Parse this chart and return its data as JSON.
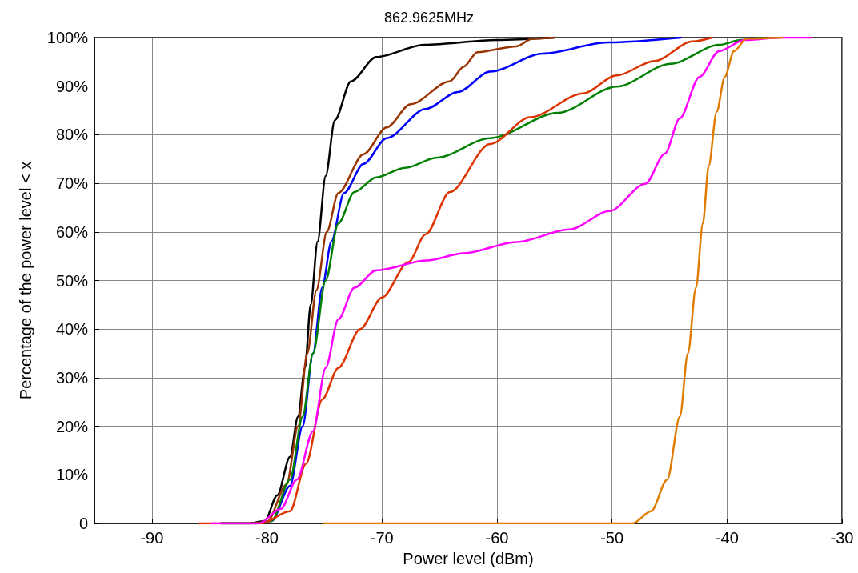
{
  "chart_data": {
    "type": "line",
    "title": "862.9625MHz",
    "xlabel": "Power level (dBm)",
    "ylabel": "Percentage of the power level < x",
    "xlim": [
      -95,
      -30
    ],
    "xticks": [
      -90,
      -80,
      -70,
      -60,
      -50,
      -40,
      -30
    ],
    "ylim": [
      0,
      100
    ],
    "yticks": [
      0,
      {
        "value": 10,
        "label": "10%"
      },
      {
        "value": 20,
        "label": "20%"
      },
      {
        "value": 30,
        "label": "30%"
      },
      {
        "value": 40,
        "label": "40%"
      },
      {
        "value": 50,
        "label": "50%"
      },
      {
        "value": 60,
        "label": "60%"
      },
      {
        "value": 70,
        "label": "70%"
      },
      {
        "value": 80,
        "label": "80%"
      },
      {
        "value": 90,
        "label": "90%"
      },
      {
        "value": 100,
        "label": "100%"
      }
    ],
    "grid": true,
    "marker": "none",
    "line_style": "solid",
    "series": [
      {
        "color": "#000000",
        "x": [
          -84,
          -81.6,
          -80.2,
          -79.1,
          -78.0,
          -77.3,
          -76.7,
          -76.2,
          -75.6,
          -74.9,
          -74.1,
          -72.7,
          -70.5,
          -66.3,
          -60,
          -55
        ],
        "values": [
          0,
          0,
          0.5,
          5.8,
          13.7,
          22,
          32,
          45,
          58,
          71.5,
          83,
          91,
          96,
          98.5,
          99.5,
          100
        ]
      },
      {
        "color": "#0000ff",
        "x": [
          -84,
          -81,
          -79.6,
          -78,
          -76.9,
          -76,
          -75.2,
          -74.4,
          -73.3,
          -71.6,
          -69.6,
          -66.2,
          -63.4,
          -60.6,
          -56,
          -50.4,
          -44
        ],
        "values": [
          0,
          0,
          0.5,
          7.7,
          20,
          35,
          48.5,
          58,
          68,
          74,
          79.3,
          85.3,
          88.8,
          93,
          96.7,
          99,
          100
        ]
      },
      {
        "color": "#993300",
        "x": [
          -84,
          -81.5,
          -80,
          -78.3,
          -77.3,
          -76.5,
          -75.7,
          -74.8,
          -73.8,
          -71.6,
          -69.6,
          -67.5,
          -64.1,
          -62.9,
          -61.7,
          -58.3,
          -56.9,
          -55
        ],
        "values": [
          0,
          0,
          0.3,
          8,
          20,
          35,
          48,
          60,
          68,
          76,
          81.5,
          86.3,
          91,
          94,
          97,
          98.2,
          99.8,
          100
        ]
      },
      {
        "color": "#008000",
        "x": [
          -84,
          -81,
          -79.6,
          -78,
          -76.9,
          -76,
          -74.9,
          -73.8,
          -72.4,
          -70.5,
          -68,
          -65.2,
          -60.6,
          -54.7,
          -49.6,
          -44.9,
          -40.7,
          -38.8,
          -37
        ],
        "values": [
          0,
          0,
          0.5,
          9,
          22,
          35,
          50,
          61.7,
          68.2,
          71.2,
          73.2,
          75.3,
          79.3,
          84.5,
          89.9,
          94.6,
          98.5,
          99.5,
          100
        ]
      },
      {
        "color": "#dd3300",
        "x": [
          -85.9,
          -80.5,
          -78,
          -76.6,
          -75.2,
          -73.8,
          -71.9,
          -70,
          -67.7,
          -66.2,
          -64.1,
          -60.6,
          -57.1,
          -52.5,
          -49.6,
          -46.3,
          -43,
          -41.3
        ],
        "values": [
          0,
          0,
          2.5,
          12.3,
          25.5,
          32,
          40,
          46.5,
          53.8,
          59.5,
          68.2,
          78.1,
          83.6,
          88.5,
          92.2,
          95.2,
          99.2,
          100
        ]
      },
      {
        "color": "#ff00ff",
        "x": [
          -84.8,
          -80.7,
          -78.8,
          -77.4,
          -76,
          -74.9,
          -73.8,
          -72.4,
          -70.5,
          -66.1,
          -62.9,
          -58.3,
          -53.7,
          -50.2,
          -47.1,
          -45.4,
          -44.1,
          -42.4,
          -40.7,
          -38.5,
          -35.2,
          -32.7
        ],
        "values": [
          0,
          0,
          3,
          9,
          19,
          32,
          42,
          48.5,
          52.1,
          54.1,
          55.6,
          57.9,
          60.5,
          64.3,
          69.9,
          76.1,
          83.4,
          91.9,
          97.2,
          99.5,
          100,
          100
        ]
      },
      {
        "color": "#e07b00",
        "x": [
          -75.1,
          -48.2,
          -46.6,
          -45.2,
          -44.1,
          -43.4,
          -42.7,
          -42.1,
          -41.6,
          -40.9,
          -40.2,
          -39.4,
          -38.3,
          -35.2
        ],
        "values": [
          0,
          0,
          2.5,
          9,
          22,
          35,
          48.5,
          61.7,
          73.5,
          84.7,
          91.9,
          97.2,
          99.8,
          100
        ]
      }
    ]
  }
}
